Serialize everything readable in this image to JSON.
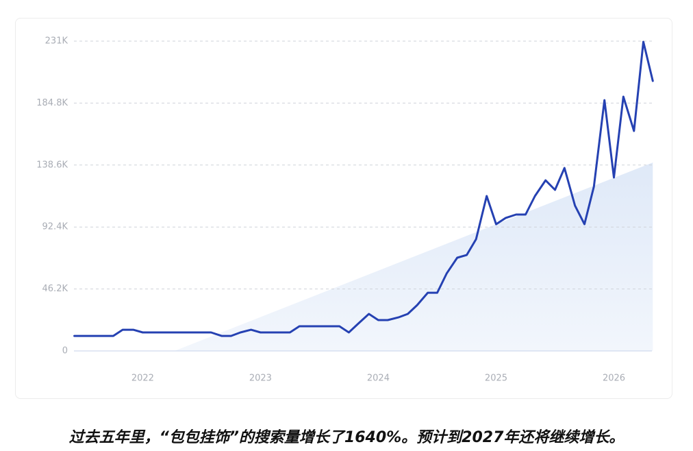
{
  "chart_data": {
    "type": "line",
    "caption": "过去五年里，“包包挂饰”的搜索量增长了1640%。预计到2027年还将继续增长。",
    "x": [
      2021.42,
      2021.5,
      2021.58,
      2021.67,
      2021.75,
      2021.83,
      2021.92,
      2022.0,
      2022.08,
      2022.17,
      2022.25,
      2022.33,
      2022.42,
      2022.5,
      2022.58,
      2022.67,
      2022.75,
      2022.83,
      2022.92,
      2023.0,
      2023.08,
      2023.17,
      2023.25,
      2023.33,
      2023.42,
      2023.5,
      2023.58,
      2023.67,
      2023.75,
      2023.83,
      2023.92,
      2024.0,
      2024.08,
      2024.17,
      2024.25,
      2024.33,
      2024.42,
      2024.5,
      2024.58,
      2024.67,
      2024.75,
      2024.83,
      2024.92,
      2025.0,
      2025.08,
      2025.17,
      2025.25,
      2025.33,
      2025.42,
      2025.5,
      2025.58,
      2025.67,
      2025.75,
      2025.83,
      2025.92,
      2026.0,
      2026.08,
      2026.17,
      2026.25,
      2026.33
    ],
    "values": [
      11200,
      11200,
      11200,
      11200,
      11200,
      15800,
      15800,
      13800,
      13800,
      13800,
      13800,
      13800,
      13800,
      13800,
      13800,
      11200,
      11200,
      13800,
      15800,
      13800,
      13800,
      13800,
      13800,
      18400,
      18400,
      18400,
      18400,
      18400,
      13800,
      20400,
      27600,
      23000,
      23000,
      25000,
      27600,
      34200,
      43400,
      43400,
      57700,
      69500,
      71500,
      83300,
      115500,
      94500,
      99100,
      101700,
      101700,
      115500,
      127200,
      120100,
      136400,
      108300,
      94500,
      122600,
      187000,
      129300,
      189600,
      164000,
      230500,
      201300
    ],
    "color": "#2541b2",
    "trend": {
      "x": [
        2022.27,
        2026.33
      ],
      "values": [
        0,
        140500
      ]
    },
    "xlim": [
      2021.37,
      2026.34
    ],
    "xticks": [
      2022,
      2023,
      2024,
      2025,
      2026
    ],
    "ylim": [
      0,
      231000
    ],
    "yticks": [
      0,
      {
        "value": 46200,
        "label": "46.2K"
      },
      {
        "value": 92400,
        "label": "92.4K"
      },
      {
        "value": 138600,
        "label": "138.6K"
      },
      {
        "value": 184800,
        "label": "184.8K"
      },
      {
        "value": 231000,
        "label": "231K"
      }
    ],
    "grid": true
  }
}
